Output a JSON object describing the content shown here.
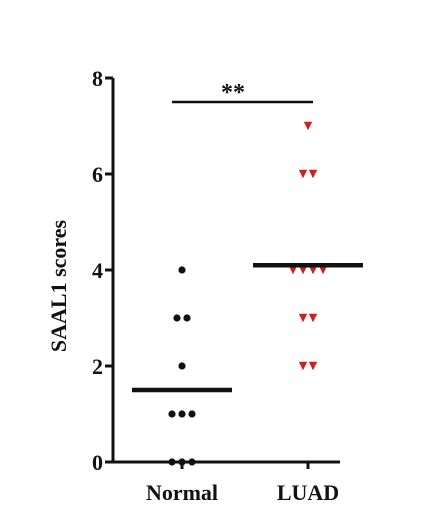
{
  "chart_data": {
    "type": "scatter",
    "title": "",
    "xlabel": "",
    "ylabel": "SAAL1 scores",
    "categories": [
      "Normal",
      "LUAD"
    ],
    "ylim": [
      0,
      8
    ],
    "yticks": [
      "0",
      "2",
      "4",
      "6",
      "8"
    ],
    "series": [
      {
        "category": "Normal",
        "color": "#111111",
        "marker": "circle",
        "points": [
          0,
          0,
          0,
          1,
          1,
          1,
          2,
          3,
          3,
          4
        ],
        "mean": 1.5
      },
      {
        "category": "LUAD",
        "color": "#cc1f1f",
        "marker": "triangle-down",
        "points": [
          2,
          2,
          3,
          3,
          4,
          4,
          4,
          4,
          6,
          6,
          7
        ],
        "mean": 4.1
      }
    ],
    "significance": {
      "label": "**",
      "between": [
        "Normal",
        "LUAD"
      ],
      "y": 7.5
    },
    "grid": false,
    "legend": "none"
  }
}
